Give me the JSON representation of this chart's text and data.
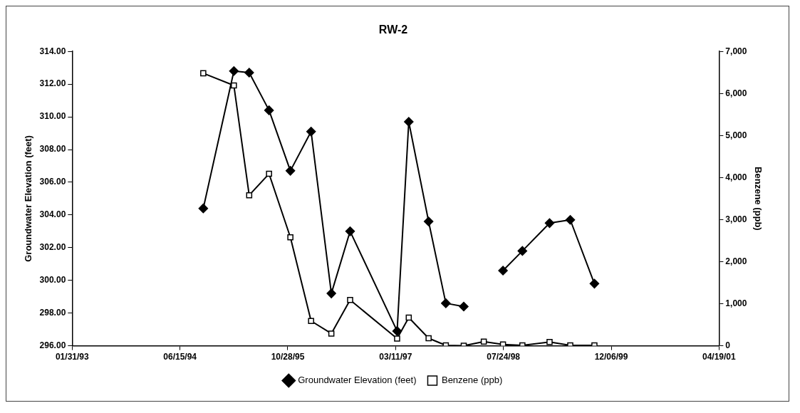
{
  "chart_data": {
    "type": "line",
    "title": "RW-2",
    "ylabel": "Groundwater Elevation (feet)",
    "y2label": "Benzene (ppb)",
    "x": [
      "1994-10-01",
      "1995-02-20",
      "1995-05-02",
      "1995-08-02",
      "1995-11-09",
      "1996-02-13",
      "1996-05-17",
      "1996-08-12",
      "1997-03-18",
      "1997-05-11",
      "1997-08-11",
      "1997-10-30",
      "1998-01-21",
      "1998-04-24",
      "1998-07-22",
      "1998-10-20",
      "1999-02-23",
      "1999-05-30",
      "1999-09-19"
    ],
    "series": [
      {
        "name": "Groundwater Elevation (feet)",
        "color": "#000000",
        "marker": "diamond",
        "values": [
          304.4,
          312.8,
          312.7,
          310.4,
          306.7,
          309.1,
          299.2,
          303.0,
          296.9,
          309.7,
          303.6,
          298.6,
          298.4,
          null,
          300.6,
          301.8,
          303.5,
          303.7,
          299.8
        ]
      },
      {
        "name": "Benzene (ppb)",
        "color": "#000000",
        "marker": "square",
        "axis": "y2",
        "values": [
          6480,
          6190,
          3580,
          4090,
          2580,
          590,
          290,
          1090,
          170,
          670,
          180,
          10,
          0,
          100,
          30,
          10,
          90,
          10,
          10
        ]
      }
    ],
    "xlim": [
      "1993-01-31",
      "2001-04-19"
    ],
    "xticks": [
      {
        "value": "1993-01-31",
        "label": "01/31/93"
      },
      {
        "value": "1994-06-15",
        "label": "06/15/94"
      },
      {
        "value": "1995-10-28",
        "label": "10/28/95"
      },
      {
        "value": "1997-03-11",
        "label": "03/11/97"
      },
      {
        "value": "1998-07-24",
        "label": "07/24/98"
      },
      {
        "value": "1999-12-06",
        "label": "12/06/99"
      },
      {
        "value": "2001-04-19",
        "label": "04/19/01"
      }
    ],
    "ylim": [
      296,
      314
    ],
    "yticks": [
      {
        "value": 296,
        "label": "296.00"
      },
      {
        "value": 298,
        "label": "298.00"
      },
      {
        "value": 300,
        "label": "300.00"
      },
      {
        "value": 302,
        "label": "302.00"
      },
      {
        "value": 304,
        "label": "304.00"
      },
      {
        "value": 306,
        "label": "306.00"
      },
      {
        "value": 308,
        "label": "308.00"
      },
      {
        "value": 310,
        "label": "310.00"
      },
      {
        "value": 312,
        "label": "312.00"
      },
      {
        "value": 314,
        "label": "314.00"
      }
    ],
    "y2lim": [
      0,
      7000
    ],
    "y2ticks": [
      0,
      {
        "value": 1000,
        "label": "1,000"
      },
      {
        "value": 2000,
        "label": "2,000"
      },
      {
        "value": 3000,
        "label": "3,000"
      },
      {
        "value": 4000,
        "label": "4,000"
      },
      {
        "value": 5000,
        "label": "5,000"
      },
      {
        "value": 6000,
        "label": "6,000"
      },
      {
        "value": 7000,
        "label": "7,000"
      }
    ],
    "grid": false,
    "legend": "bottom",
    "line_style": "solid"
  }
}
